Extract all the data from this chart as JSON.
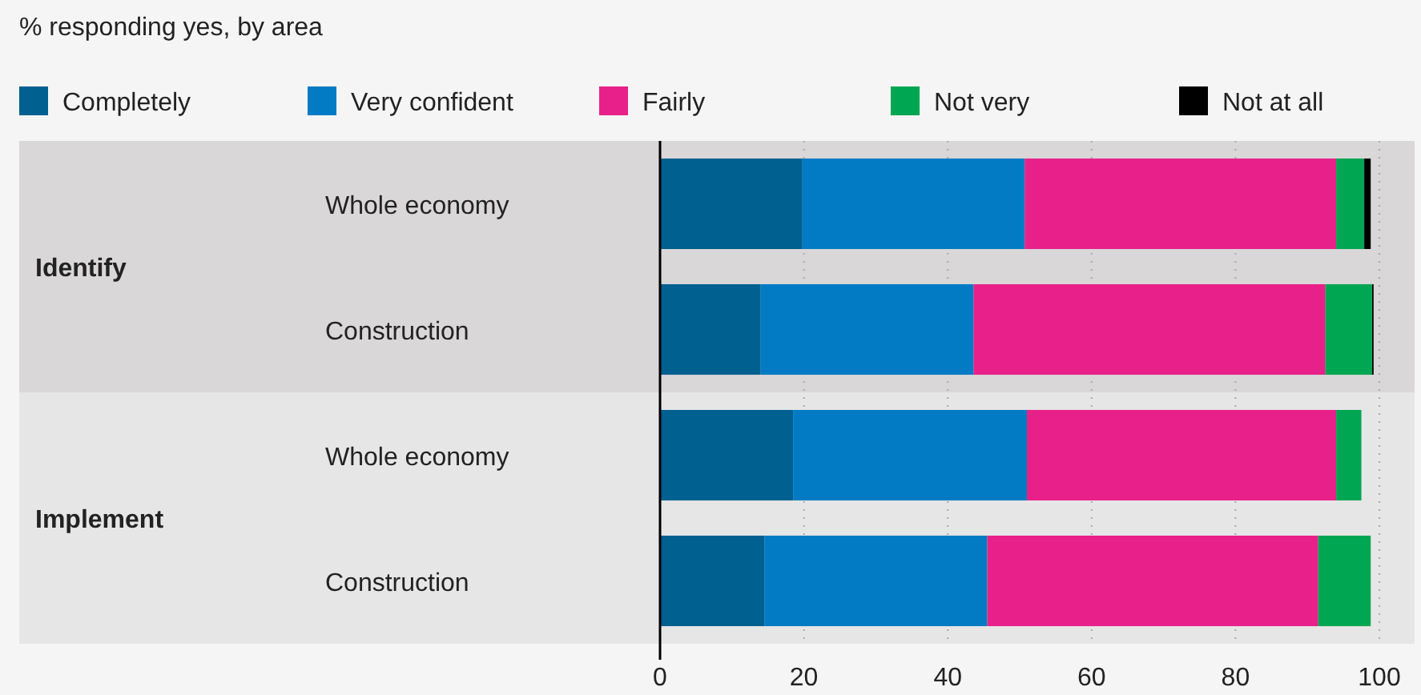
{
  "chart_data": {
    "type": "bar",
    "orientation": "horizontal",
    "stacked": true,
    "title": "% responding yes, by area",
    "categories": [
      "Whole economy",
      "Construction",
      "Whole economy",
      "Construction"
    ],
    "bands": [
      {
        "axis": "y",
        "from": "Whole economy",
        "to": "Construction",
        "label": "Identify",
        "color": "#d9d7d8"
      }
    ],
    "annotations": [
      "Implement"
    ],
    "series": [
      {
        "name": "Completely",
        "color": "#006090",
        "values": [
          19.8,
          14,
          18.5,
          14.5
        ]
      },
      {
        "name": "Very confident",
        "color": "#027bc4",
        "values": [
          30.9,
          29.6,
          32.5,
          31
        ]
      },
      {
        "name": "Fairly",
        "color": "#e8208a",
        "values": [
          43.3,
          48.9,
          43,
          46
        ]
      },
      {
        "name": "Not very",
        "color": "#00a651",
        "values": [
          3.9,
          6.5,
          3.5,
          7.3
        ]
      },
      {
        "name": "Not at all",
        "color": "#000000",
        "values": [
          0.9,
          0.2,
          0,
          0
        ]
      }
    ],
    "xlim": [
      0,
      100
    ],
    "xticks": [
      0,
      20,
      40,
      60,
      80,
      100
    ],
    "grid": "x",
    "legend": "top"
  }
}
